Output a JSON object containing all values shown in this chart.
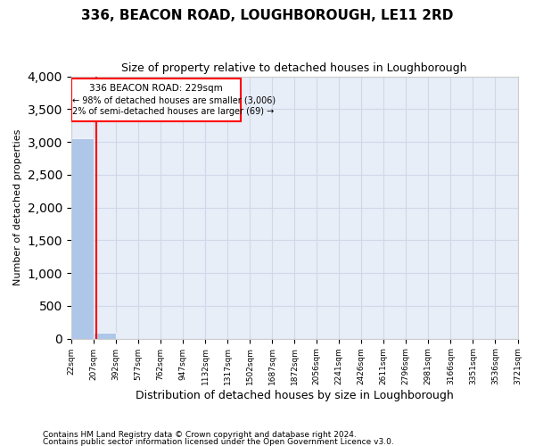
{
  "title": "336, BEACON ROAD, LOUGHBOROUGH, LE11 2RD",
  "subtitle": "Size of property relative to detached houses in Loughborough",
  "xlabel": "Distribution of detached houses by size in Loughborough",
  "ylabel": "Number of detached properties",
  "footnote1": "Contains HM Land Registry data © Crown copyright and database right 2024.",
  "footnote2": "Contains public sector information licensed under the Open Government Licence v3.0.",
  "annotation_title": "336 BEACON ROAD: 229sqm",
  "annotation_line2": "← 98% of detached houses are smaller (3,006)",
  "annotation_line3": "2% of semi-detached houses are larger (69) →",
  "property_sqm": 229,
  "bar_color": "#aec6e8",
  "highlight_color": "#d0e4f5",
  "vline_color": "red",
  "grid_color": "#d0d8e8",
  "background_color": "#e8eef8",
  "ylim": [
    0,
    4000
  ],
  "yticks": [
    0,
    500,
    1000,
    1500,
    2000,
    2500,
    3000,
    3500,
    4000
  ],
  "bin_edges": [
    22,
    207,
    392,
    577,
    762,
    947,
    1132,
    1317,
    1502,
    1687,
    1872,
    2056,
    2241,
    2426,
    2611,
    2796,
    2981,
    3166,
    3351,
    3536,
    3721
  ],
  "bin_counts": [
    3050,
    90,
    0,
    0,
    0,
    0,
    0,
    0,
    0,
    0,
    0,
    0,
    0,
    0,
    0,
    0,
    0,
    0,
    0,
    0
  ],
  "tick_labels": [
    "22sqm",
    "207sqm",
    "392sqm",
    "577sqm",
    "762sqm",
    "947sqm",
    "1132sqm",
    "1317sqm",
    "1502sqm",
    "1687sqm",
    "1872sqm",
    "2056sqm",
    "2241sqm",
    "2426sqm",
    "2611sqm",
    "2796sqm",
    "2981sqm",
    "3166sqm",
    "3351sqm",
    "3536sqm",
    "3721sqm"
  ]
}
